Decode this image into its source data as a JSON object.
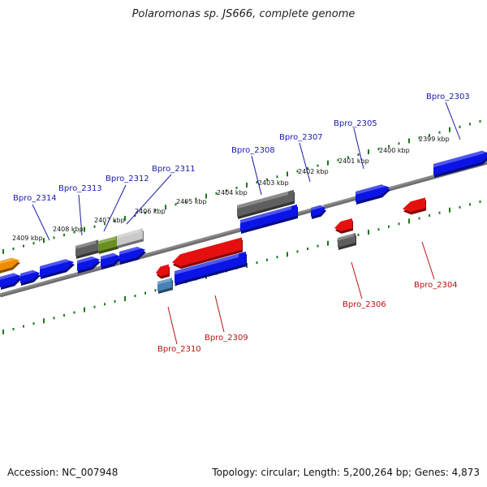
{
  "header": {
    "title": "Polaromonas sp. JS666, complete genome"
  },
  "footer": {
    "accession": "Accession: NC_007948",
    "topology": "Topology: circular; Length: 5,200,264 bp; Genes: 4,873"
  },
  "kbp_labels": [
    "2409 kbp",
    "2408 kbp",
    "2407 kbp",
    "2406 kbp",
    "2405 kbp",
    "2404 kbp",
    "2403 kbp",
    "2402 kbp",
    "2401 kbp",
    "2400 kbp",
    "2399 kbp"
  ],
  "gene_labels": {
    "top": [
      "Bpro_2314",
      "Bpro_2313",
      "Bpro_2312",
      "Bpro_2311",
      "Bpro_2308",
      "Bpro_2307",
      "Bpro_2305",
      "Bpro_2303"
    ],
    "bottom": [
      "Bpro_2310",
      "Bpro_2309",
      "Bpro_2306",
      "Bpro_2304"
    ]
  },
  "colors": {
    "forward": "#0a14e6",
    "reverse": "#e60f0f",
    "pseudo": "#5f5f5f",
    "rna": "#6b8e23",
    "light": "#c8c8c8",
    "orange": "#f08c00",
    "steel": "#4682b4",
    "top_label": "#1a1aaa",
    "bottom_label": "#bb1111",
    "ruler": "#1a7a1a",
    "backbone": "#8a8a8a"
  }
}
